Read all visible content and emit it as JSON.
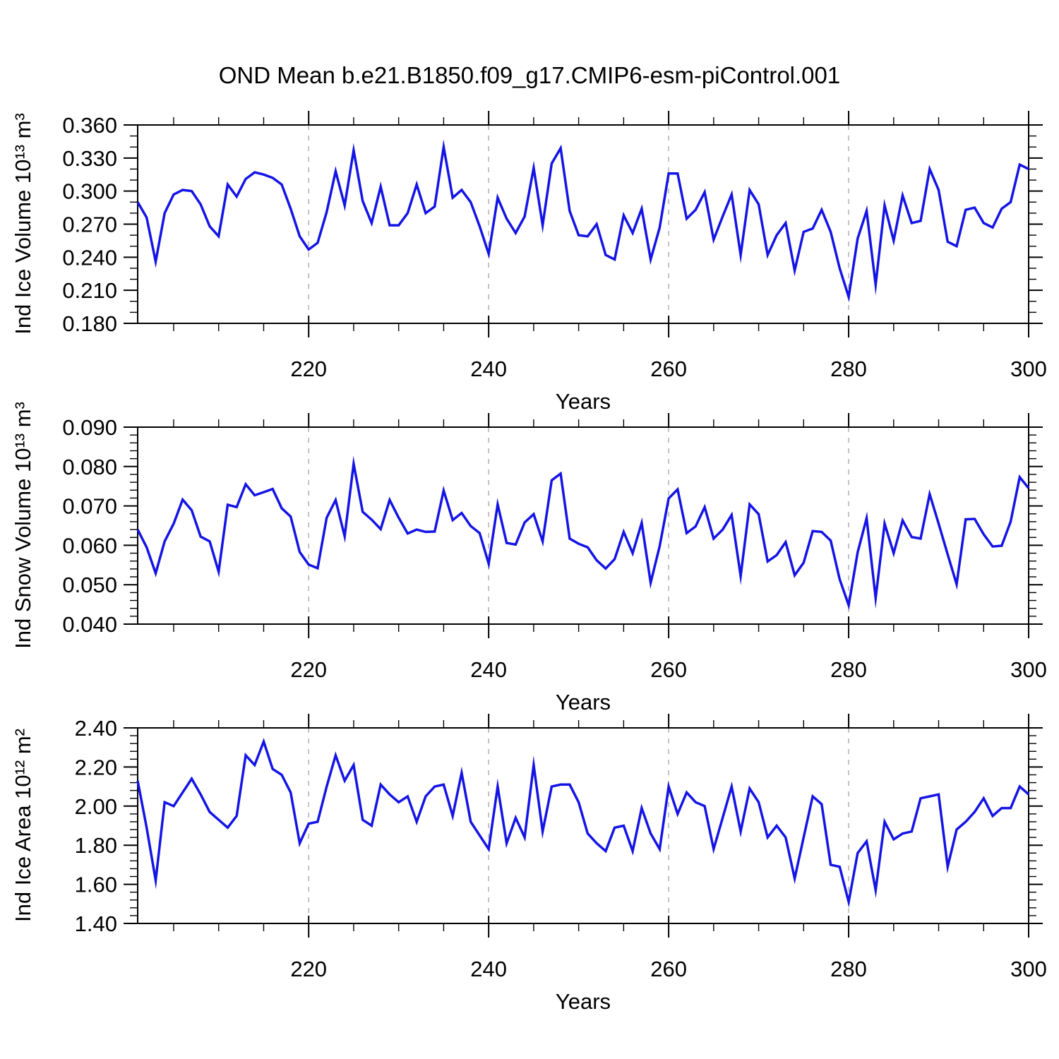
{
  "title": "OND Mean b.e21.B1850.f09_g17.CMIP6-esm-piControl.001",
  "colors": {
    "line": "#1414e6",
    "grid": "#b0b0b0",
    "axis": "#000000"
  },
  "x_axis": {
    "label": "Years",
    "start": 201,
    "end": 300,
    "major_ticks": [
      220,
      240,
      260,
      280,
      300
    ],
    "tick_labels": [
      "220",
      "240",
      "260",
      "280",
      "300"
    ],
    "minor_step": 5,
    "gridline_years": [
      220,
      240,
      260,
      280
    ]
  },
  "chart_data": [
    {
      "type": "line",
      "name": "ind-ice-volume",
      "y_label": "Ind Ice Volume 10¹³ m³",
      "x_label": "Years",
      "ylim": [
        0.18,
        0.36
      ],
      "y_ticks": [
        0.36,
        0.33,
        0.3,
        0.27,
        0.24,
        0.21,
        0.18
      ],
      "y_tick_labels": [
        "0.360",
        "0.330",
        "0.300",
        "0.270",
        "0.240",
        "0.210",
        "0.180"
      ],
      "y_minor_step": 0.01,
      "x_years_start": 201,
      "values": [
        0.29,
        0.276,
        0.236,
        0.28,
        0.297,
        0.301,
        0.3,
        0.288,
        0.268,
        0.259,
        0.306,
        0.295,
        0.311,
        0.317,
        0.315,
        0.312,
        0.306,
        0.284,
        0.259,
        0.247,
        0.253,
        0.281,
        0.318,
        0.287,
        0.337,
        0.291,
        0.271,
        0.304,
        0.269,
        0.269,
        0.28,
        0.306,
        0.28,
        0.286,
        0.34,
        0.294,
        0.301,
        0.29,
        0.268,
        0.243,
        0.294,
        0.275,
        0.262,
        0.277,
        0.321,
        0.269,
        0.325,
        0.339,
        0.282,
        0.26,
        0.259,
        0.27,
        0.242,
        0.238,
        0.278,
        0.262,
        0.284,
        0.238,
        0.267,
        0.316,
        0.316,
        0.275,
        0.283,
        0.299,
        0.256,
        0.277,
        0.297,
        0.242,
        0.301,
        0.288,
        0.242,
        0.26,
        0.271,
        0.228,
        0.263,
        0.266,
        0.283,
        0.263,
        0.23,
        0.204,
        0.257,
        0.282,
        0.215,
        0.287,
        0.255,
        0.296,
        0.271,
        0.273,
        0.32,
        0.301,
        0.254,
        0.25,
        0.283,
        0.285,
        0.271,
        0.267,
        0.284,
        0.29,
        0.324,
        0.32
      ]
    },
    {
      "type": "line",
      "name": "ind-snow-volume",
      "y_label": "Ind Snow Volume 10¹³ m³",
      "x_label": "Years",
      "ylim": [
        0.04,
        0.09
      ],
      "y_ticks": [
        0.09,
        0.08,
        0.07,
        0.06,
        0.05,
        0.04
      ],
      "y_tick_labels": [
        "0.090",
        "0.080",
        "0.070",
        "0.060",
        "0.050",
        "0.040"
      ],
      "y_minor_step": 0.002,
      "x_years_start": 201,
      "values": [
        0.064,
        0.0595,
        0.0529,
        0.061,
        0.0655,
        0.0716,
        0.0689,
        0.0622,
        0.061,
        0.0533,
        0.0703,
        0.0697,
        0.0755,
        0.0727,
        0.0735,
        0.0743,
        0.0694,
        0.0673,
        0.0583,
        0.0551,
        0.0542,
        0.067,
        0.0715,
        0.0623,
        0.0807,
        0.0685,
        0.0665,
        0.0641,
        0.0715,
        0.067,
        0.063,
        0.064,
        0.0634,
        0.0635,
        0.0739,
        0.0664,
        0.0682,
        0.0649,
        0.0631,
        0.0553,
        0.0704,
        0.0606,
        0.0602,
        0.0658,
        0.0679,
        0.061,
        0.0765,
        0.0782,
        0.0617,
        0.0604,
        0.0595,
        0.0562,
        0.0541,
        0.0565,
        0.0634,
        0.058,
        0.0657,
        0.0505,
        0.0598,
        0.0719,
        0.0742,
        0.0631,
        0.0648,
        0.0697,
        0.0617,
        0.064,
        0.0677,
        0.0522,
        0.0704,
        0.0679,
        0.0559,
        0.0575,
        0.0608,
        0.0524,
        0.0556,
        0.0636,
        0.0634,
        0.0612,
        0.0514,
        0.0448,
        0.0582,
        0.0669,
        0.0466,
        0.0655,
        0.058,
        0.0663,
        0.0621,
        0.0617,
        0.073,
        0.0655,
        0.0577,
        0.0501,
        0.0666,
        0.0667,
        0.0628,
        0.0597,
        0.0599,
        0.066,
        0.0773,
        0.0745
      ]
    },
    {
      "type": "line",
      "name": "ind-ice-area",
      "y_label": "Ind Ice Area 10¹² m²",
      "x_label": "Years",
      "ylim": [
        1.4,
        2.4
      ],
      "y_ticks": [
        2.4,
        2.2,
        2.0,
        1.8,
        1.6,
        1.4
      ],
      "y_tick_labels": [
        "2.40",
        "2.20",
        "2.00",
        "1.80",
        "1.60",
        "1.40"
      ],
      "y_minor_step": 0.04,
      "x_years_start": 201,
      "values": [
        2.13,
        1.89,
        1.62,
        2.02,
        2.0,
        2.07,
        2.14,
        2.06,
        1.97,
        1.93,
        1.89,
        1.95,
        2.26,
        2.21,
        2.33,
        2.19,
        2.16,
        2.07,
        1.81,
        1.91,
        1.92,
        2.1,
        2.26,
        2.13,
        2.21,
        1.93,
        1.9,
        2.11,
        2.06,
        2.02,
        2.05,
        1.92,
        2.05,
        2.1,
        2.11,
        1.95,
        2.17,
        1.92,
        1.85,
        1.78,
        2.1,
        1.81,
        1.94,
        1.84,
        2.21,
        1.87,
        2.1,
        2.11,
        2.11,
        2.02,
        1.86,
        1.81,
        1.77,
        1.89,
        1.9,
        1.77,
        1.99,
        1.86,
        1.78,
        2.1,
        1.96,
        2.07,
        2.02,
        2.0,
        1.78,
        1.94,
        2.1,
        1.87,
        2.09,
        2.02,
        1.84,
        1.9,
        1.84,
        1.63,
        1.84,
        2.05,
        2.01,
        1.7,
        1.69,
        1.51,
        1.76,
        1.82,
        1.57,
        1.92,
        1.83,
        1.86,
        1.87,
        2.04,
        2.05,
        2.06,
        1.69,
        1.88,
        1.92,
        1.97,
        2.04,
        1.95,
        1.99,
        1.99,
        2.1,
        2.06
      ]
    }
  ]
}
